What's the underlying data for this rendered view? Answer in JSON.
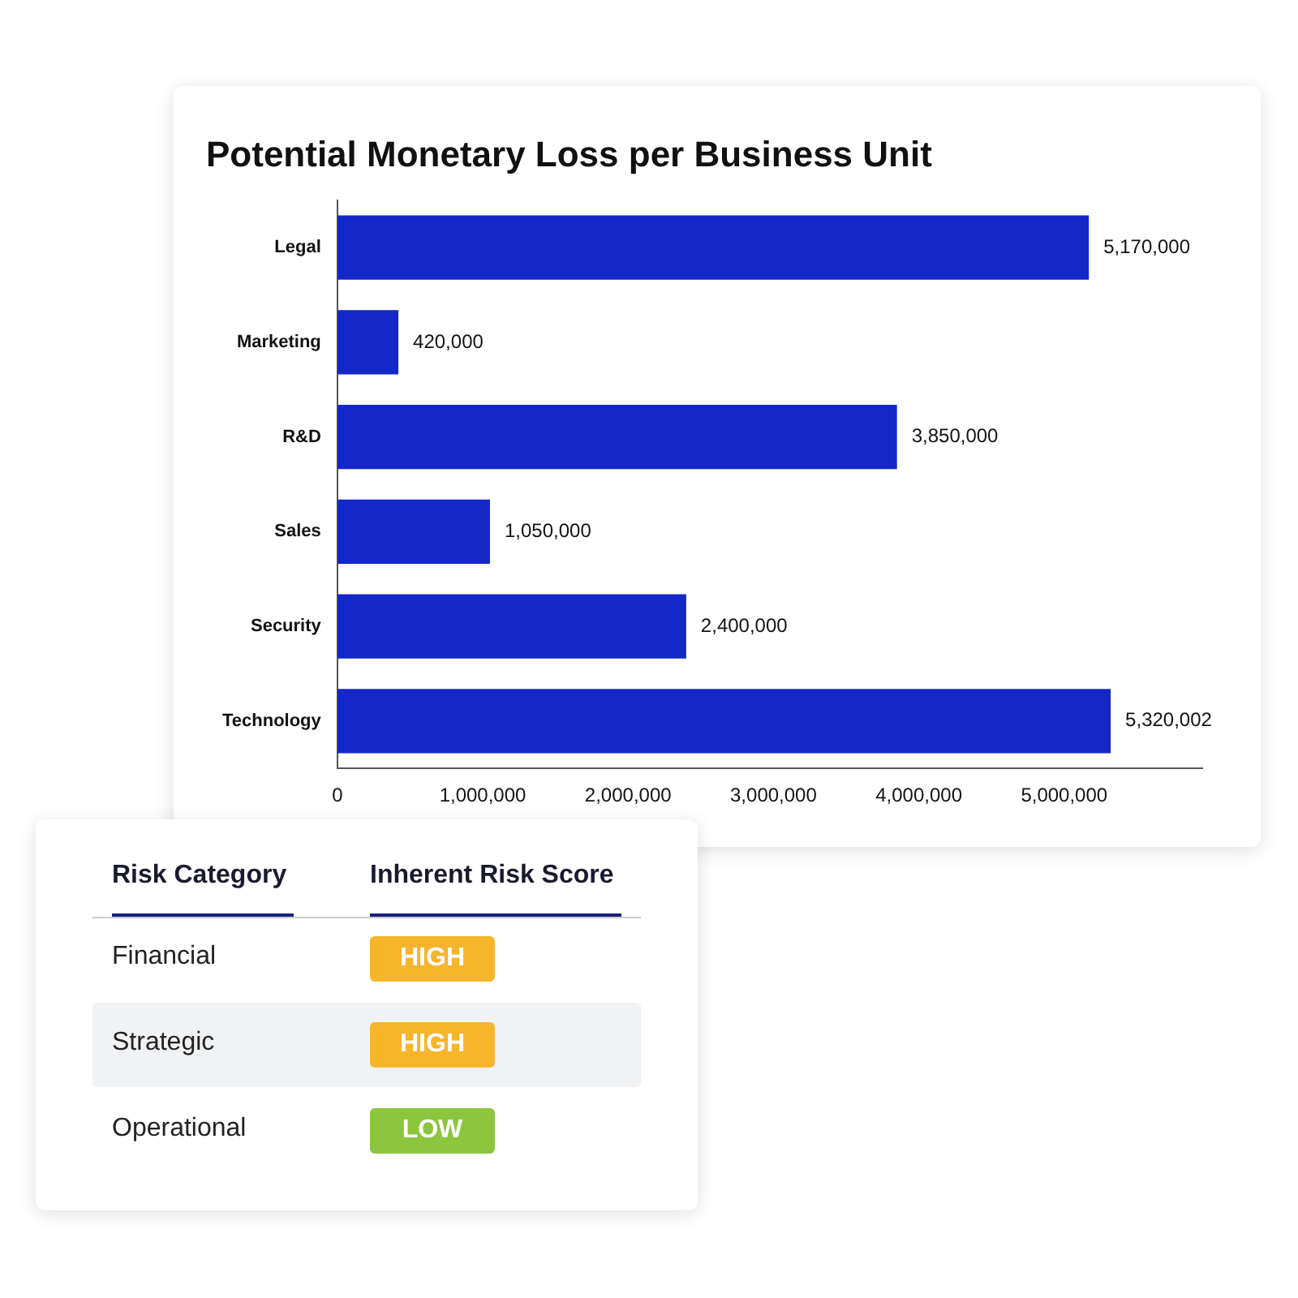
{
  "chart_data": [
    {
      "type": "bar",
      "title": "Potential Monetary Loss per Business Unit",
      "orientation": "horizontal",
      "categories": [
        "Legal",
        "Marketing",
        "R&D",
        "Sales",
        "Security",
        "Technology"
      ],
      "values": [
        5170000,
        420000,
        3850000,
        1050000,
        2400000,
        5320002
      ],
      "color": "#1428c8",
      "xlim": [
        0,
        5950000
      ],
      "xticks": [
        {
          "value": 0,
          "label": "0"
        },
        {
          "value": 1000000,
          "label": "1,000,000"
        },
        {
          "value": 2000000,
          "label": "2,000,000"
        },
        {
          "value": 3000000,
          "label": "3,000,000"
        },
        {
          "value": 4000000,
          "label": "4,000,000"
        },
        {
          "value": 5000000,
          "label": "5,000,000"
        }
      ],
      "value_labels": [
        "5,170,000",
        "420,000",
        "3,850,000",
        "1,050,000",
        "2,400,000",
        "5,320,002"
      ],
      "grid": false,
      "legend": false
    },
    {
      "type": "other",
      "annotations": [
        "Risk Category",
        "Inherent Risk Score"
      ],
      "y_categories": [
        "Financial",
        "Strategic",
        "Operational"
      ],
      "categories": [
        "HIGH",
        "HIGH",
        "LOW"
      ],
      "colors": [
        "#f7b52c",
        "#f7b52c",
        "#8cc63f"
      ]
    }
  ]
}
